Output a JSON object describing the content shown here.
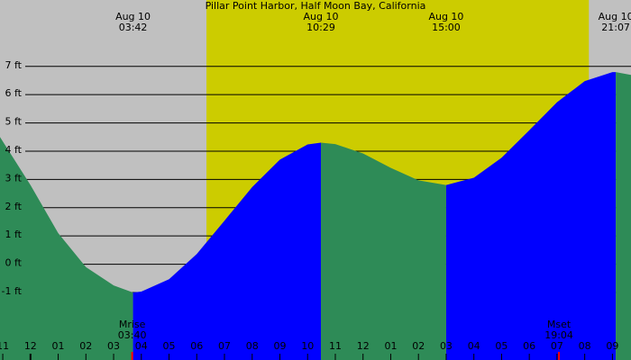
{
  "chart_data": {
    "type": "tide",
    "title": "Pillar Point Harbor, Half Moon Bay, California",
    "xlim": [
      -1.1,
      21.67
    ],
    "ylim": [
      -3.39,
      9.35
    ],
    "background_color": "#c0c0c0",
    "daylight_color": "#cccc00",
    "daylight": [
      6.35,
      20.15
    ],
    "rising_color": "#0000ff",
    "falling_color": "#2e8b57",
    "grid": true,
    "yticks": [
      {
        "value": 7,
        "label": "7 ft"
      },
      {
        "value": 6,
        "label": "6 ft"
      },
      {
        "value": 5,
        "label": "5 ft"
      },
      {
        "value": 4,
        "label": "4 ft"
      },
      {
        "value": 3,
        "label": "3 ft"
      },
      {
        "value": 2,
        "label": "2 ft"
      },
      {
        "value": 1,
        "label": "1 ft"
      },
      {
        "value": 0,
        "label": "0 ft"
      },
      {
        "value": -1,
        "label": "-1 ft"
      }
    ],
    "xticks": [
      {
        "value": -1,
        "label": "11"
      },
      {
        "value": 0,
        "label": "12"
      },
      {
        "value": 1,
        "label": "01"
      },
      {
        "value": 2,
        "label": "02"
      },
      {
        "value": 3,
        "label": "03"
      },
      {
        "value": 4,
        "label": "04"
      },
      {
        "value": 5,
        "label": "05"
      },
      {
        "value": 6,
        "label": "06"
      },
      {
        "value": 7,
        "label": "07"
      },
      {
        "value": 8,
        "label": "08"
      },
      {
        "value": 9,
        "label": "09"
      },
      {
        "value": 10,
        "label": "10"
      },
      {
        "value": 11,
        "label": "11"
      },
      {
        "value": 12,
        "label": "12"
      },
      {
        "value": 13,
        "label": "01"
      },
      {
        "value": 14,
        "label": "02"
      },
      {
        "value": 15,
        "label": "03"
      },
      {
        "value": 16,
        "label": "04"
      },
      {
        "value": 17,
        "label": "05"
      },
      {
        "value": 18,
        "label": "06"
      },
      {
        "value": 19,
        "label": "07"
      },
      {
        "value": 20,
        "label": "08"
      },
      {
        "value": 21,
        "label": "09"
      }
    ],
    "x": [
      -1.1,
      0,
      1,
      2,
      3,
      3.7,
      4,
      5,
      6,
      7,
      8,
      9,
      10,
      10.48,
      11,
      12,
      13,
      14,
      15,
      16,
      17,
      18,
      19,
      20,
      21,
      21.12,
      21.67
    ],
    "values": [
      4.5,
      2.8,
      1.1,
      -0.1,
      -0.75,
      -1.0,
      -0.97,
      -0.53,
      0.36,
      1.54,
      2.73,
      3.7,
      4.24,
      4.3,
      4.25,
      3.92,
      3.41,
      2.97,
      2.8,
      3.06,
      3.77,
      4.74,
      5.73,
      6.48,
      6.8,
      6.8,
      6.7
    ],
    "extremes": [
      {
        "date": "Aug 10",
        "time": "03:42",
        "hour": 3.7,
        "height": -1.0
      },
      {
        "date": "Aug 10",
        "time": "10:29",
        "hour": 10.48,
        "height": 4.3
      },
      {
        "date": "Aug 10",
        "time": "15:00",
        "hour": 15,
        "height": 2.8
      },
      {
        "date": "Aug 10",
        "time": "21:07",
        "hour": 21.12,
        "height": 6.8
      }
    ],
    "moon_events": [
      {
        "label": "Mrise",
        "time": "03:40",
        "hour": 3.67,
        "color": "#ff0000"
      },
      {
        "label": "Mset",
        "time": "19:04",
        "hour": 19.07,
        "color": "#ff0000"
      }
    ]
  }
}
